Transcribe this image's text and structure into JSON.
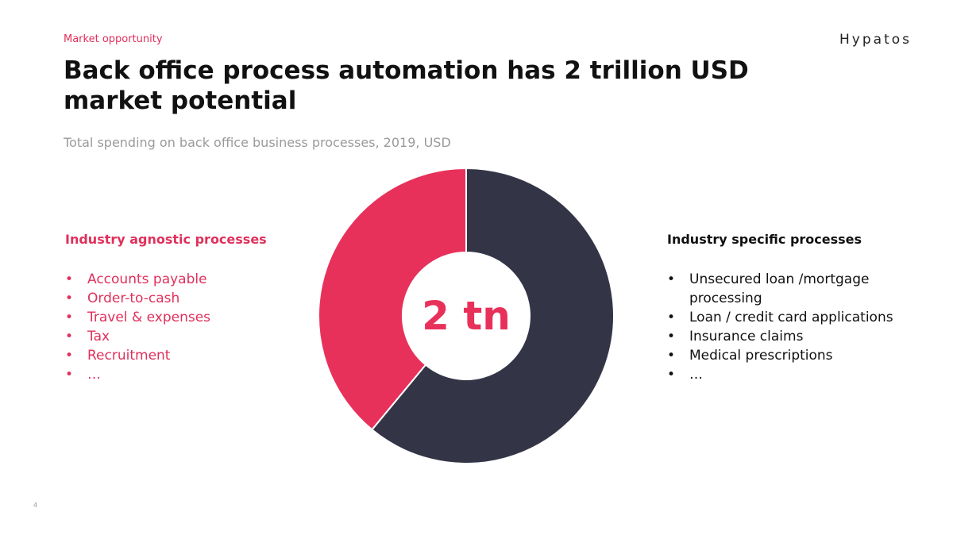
{
  "header": {
    "section": "Market opportunity",
    "brand": "Hypatos",
    "title": "Back office process automation has 2 trillion USD market potential",
    "subtitle": "Total spending on back office business processes, 2019, USD"
  },
  "chart_data": {
    "type": "pie",
    "donut": true,
    "start": "top",
    "direction": "counterclockwise",
    "categories": [
      "Industry agnostic processes",
      "Industry specific processes"
    ],
    "values": [
      39,
      61
    ],
    "colors": [
      "#e8315a",
      "#333547"
    ],
    "center_label": "2 tn"
  },
  "lists": {
    "agnostic": [
      "Accounts payable",
      "Order-to-cash",
      "Travel & expenses",
      "Tax",
      "Recruitment",
      "…"
    ],
    "specific": [
      "Unsecured loan /mortgage processing",
      "Loan / credit card applications",
      "Insurance claims",
      "Medical prescriptions",
      "…"
    ]
  },
  "page_number": "4"
}
